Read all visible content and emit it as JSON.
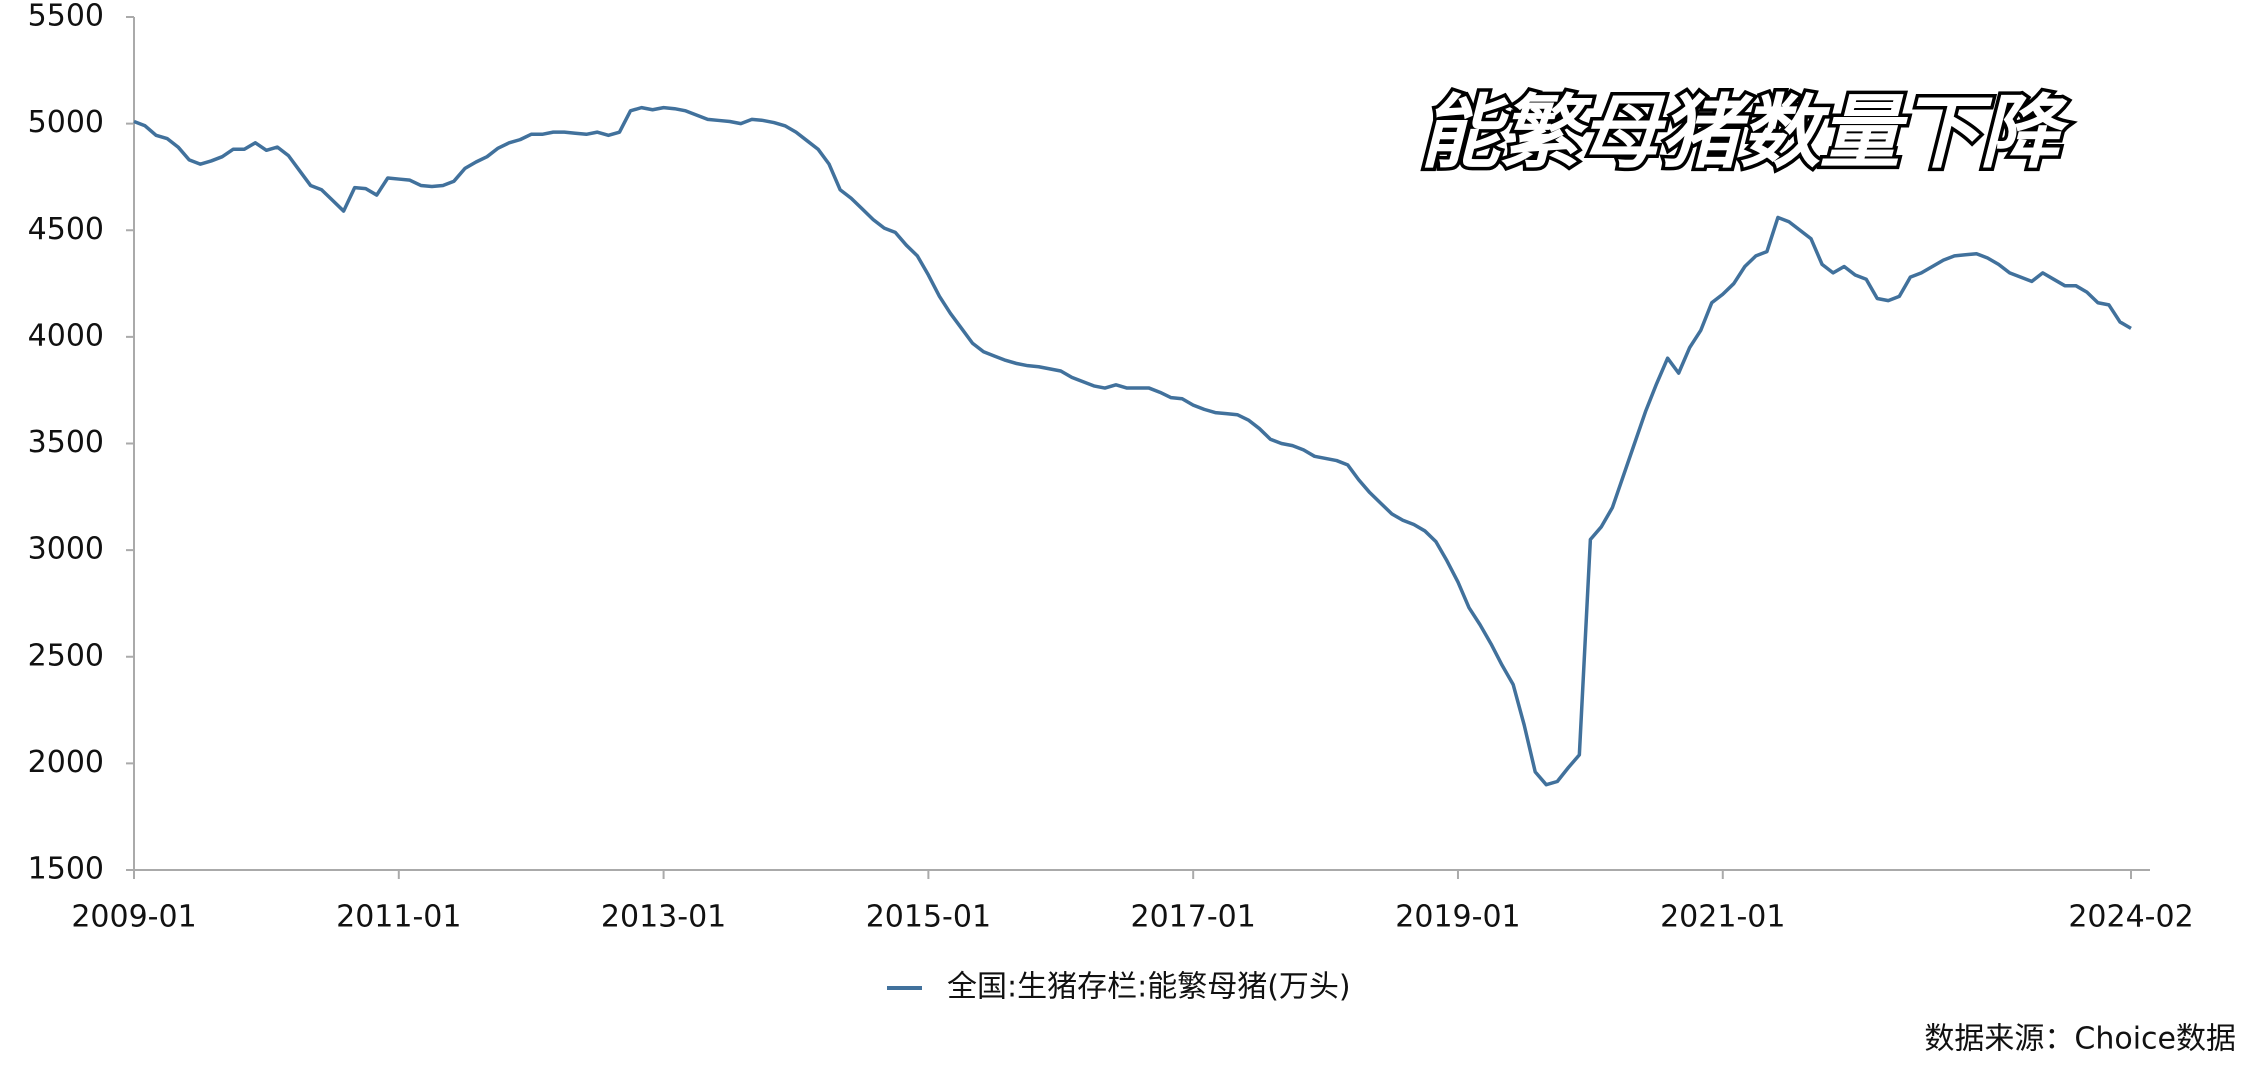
{
  "chart_data": {
    "type": "line",
    "annotation": "能繁母猪数量下降",
    "source": "数据来源：Choice数据",
    "x": [
      "2009-01",
      "2009-02",
      "2009-03",
      "2009-04",
      "2009-05",
      "2009-06",
      "2009-07",
      "2009-08",
      "2009-09",
      "2009-10",
      "2009-11",
      "2009-12",
      "2010-01",
      "2010-02",
      "2010-03",
      "2010-04",
      "2010-05",
      "2010-06",
      "2010-07",
      "2010-08",
      "2010-09",
      "2010-10",
      "2010-11",
      "2010-12",
      "2011-01",
      "2011-02",
      "2011-03",
      "2011-04",
      "2011-05",
      "2011-06",
      "2011-07",
      "2011-08",
      "2011-09",
      "2011-10",
      "2011-11",
      "2011-12",
      "2012-01",
      "2012-02",
      "2012-03",
      "2012-04",
      "2012-05",
      "2012-06",
      "2012-07",
      "2012-08",
      "2012-09",
      "2012-10",
      "2012-11",
      "2012-12",
      "2013-01",
      "2013-02",
      "2013-03",
      "2013-04",
      "2013-05",
      "2013-06",
      "2013-07",
      "2013-08",
      "2013-09",
      "2013-10",
      "2013-11",
      "2013-12",
      "2014-01",
      "2014-02",
      "2014-03",
      "2014-04",
      "2014-05",
      "2014-06",
      "2014-07",
      "2014-08",
      "2014-09",
      "2014-10",
      "2014-11",
      "2014-12",
      "2015-01",
      "2015-02",
      "2015-03",
      "2015-04",
      "2015-05",
      "2015-06",
      "2015-07",
      "2015-08",
      "2015-09",
      "2015-10",
      "2015-11",
      "2015-12",
      "2016-01",
      "2016-02",
      "2016-03",
      "2016-04",
      "2016-05",
      "2016-06",
      "2016-07",
      "2016-08",
      "2016-09",
      "2016-10",
      "2016-11",
      "2016-12",
      "2017-01",
      "2017-02",
      "2017-03",
      "2017-04",
      "2017-05",
      "2017-06",
      "2017-07",
      "2017-08",
      "2017-09",
      "2017-10",
      "2017-11",
      "2017-12",
      "2018-01",
      "2018-02",
      "2018-03",
      "2018-04",
      "2018-05",
      "2018-06",
      "2018-07",
      "2018-08",
      "2018-09",
      "2018-10",
      "2018-11",
      "2018-12",
      "2019-01",
      "2019-02",
      "2019-03",
      "2019-04",
      "2019-05",
      "2019-06",
      "2019-07",
      "2019-08",
      "2019-09",
      "2019-10",
      "2019-11",
      "2019-12",
      "2020-01",
      "2020-02",
      "2020-03",
      "2020-04",
      "2020-05",
      "2020-06",
      "2020-07",
      "2020-08",
      "2020-09",
      "2020-10",
      "2020-11",
      "2020-12",
      "2021-01",
      "2021-02",
      "2021-03",
      "2021-04",
      "2021-05",
      "2021-06",
      "2021-07",
      "2021-08",
      "2021-09",
      "2021-10",
      "2021-11",
      "2021-12",
      "2022-01",
      "2022-02",
      "2022-03",
      "2022-04",
      "2022-05",
      "2022-06",
      "2022-07",
      "2022-08",
      "2022-09",
      "2022-10",
      "2022-11",
      "2022-12",
      "2023-01",
      "2023-02",
      "2023-03",
      "2023-04",
      "2023-05",
      "2023-06",
      "2023-07",
      "2023-08",
      "2023-09",
      "2023-10",
      "2023-11",
      "2023-12",
      "2024-01",
      "2024-02"
    ],
    "series": [
      {
        "name": "全国:生猪存栏:能繁母猪(万头)",
        "color": "#41719c",
        "values": [
          5010,
          4990,
          4945,
          4930,
          4890,
          4830,
          4810,
          4825,
          4845,
          4880,
          4880,
          4910,
          4875,
          4890,
          4850,
          4780,
          4710,
          4690,
          4640,
          4590,
          4700,
          4695,
          4665,
          4745,
          4740,
          4735,
          4710,
          4705,
          4710,
          4730,
          4790,
          4820,
          4845,
          4885,
          4910,
          4925,
          4950,
          4950,
          4960,
          4960,
          4955,
          4950,
          4960,
          4945,
          4960,
          5060,
          5075,
          5065,
          5075,
          5070,
          5060,
          5040,
          5020,
          5015,
          5010,
          5000,
          5020,
          5015,
          5005,
          4990,
          4960,
          4920,
          4880,
          4810,
          4690,
          4650,
          4600,
          4550,
          4510,
          4490,
          4430,
          4380,
          4290,
          4190,
          4110,
          4040,
          3970,
          3930,
          3910,
          3890,
          3875,
          3865,
          3860,
          3850,
          3840,
          3810,
          3790,
          3770,
          3760,
          3775,
          3760,
          3760,
          3760,
          3740,
          3715,
          3710,
          3680,
          3660,
          3645,
          3640,
          3635,
          3610,
          3570,
          3520,
          3500,
          3490,
          3470,
          3440,
          3430,
          3420,
          3400,
          3330,
          3270,
          3220,
          3170,
          3140,
          3120,
          3090,
          3040,
          2950,
          2850,
          2730,
          2650,
          2560,
          2460,
          2370,
          2180,
          1960,
          1900,
          1915,
          1980,
          2040,
          3050,
          3110,
          3200,
          3350,
          3500,
          3650,
          3780,
          3900,
          3830,
          3950,
          4030,
          4160,
          4200,
          4250,
          4330,
          4380,
          4400,
          4560,
          4540,
          4500,
          4460,
          4340,
          4300,
          4330,
          4290,
          4270,
          4180,
          4170,
          4190,
          4280,
          4300,
          4330,
          4360,
          4380,
          4385,
          4390,
          4370,
          4340,
          4300,
          4280,
          4260,
          4300,
          4270,
          4240,
          4240,
          4210,
          4160,
          4150,
          4070,
          4040
        ]
      }
    ],
    "xticks": [
      "2009-01",
      "2011-01",
      "2013-01",
      "2015-01",
      "2017-01",
      "2019-01",
      "2021-01",
      "2024-02"
    ],
    "ylim": [
      1500,
      5500
    ],
    "yticks": [
      1500,
      2000,
      2500,
      3000,
      3500,
      4000,
      4500,
      5000,
      5500
    ],
    "grid": false,
    "legend": "bottom"
  }
}
